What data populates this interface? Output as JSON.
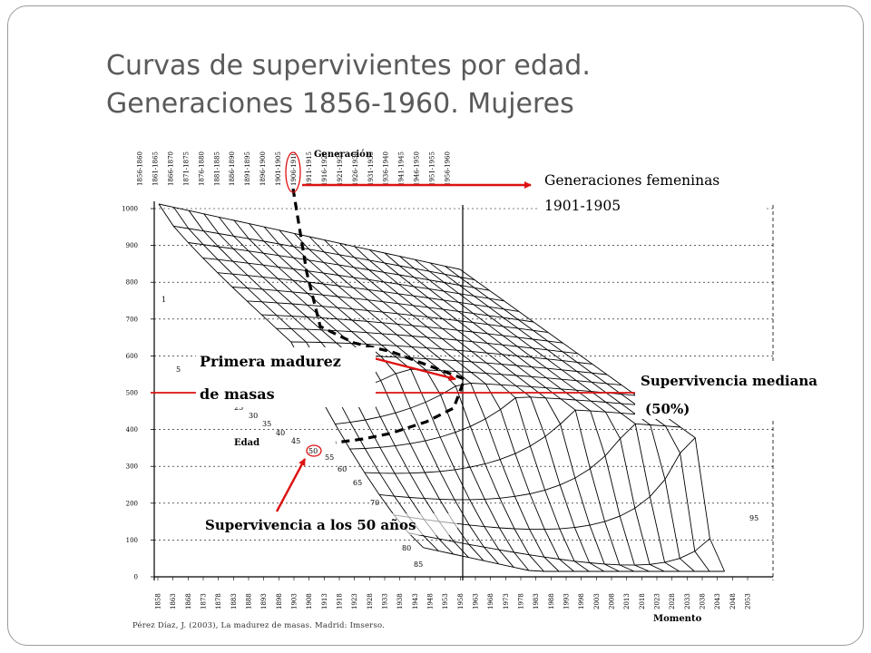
{
  "slide": {
    "title_line1": "Curvas de supervivientes por edad.",
    "title_line2": "Generaciones 1856-1960. Mujeres",
    "source": "Pérez Díaz, J. (2003), La madurez de masas. Madrid: Imserso."
  },
  "colors": {
    "annotation_red": "#dd1111",
    "title_gray": "#5a5a5a",
    "grid": "#000000"
  },
  "chart_data": {
    "type": "surface-3d-wireframe",
    "axis_labels": {
      "generation": "Generación",
      "age": "Edad",
      "time": "Momento"
    },
    "generations": [
      "1856-1860",
      "1861-1865",
      "1866-1870",
      "1871-1875",
      "1876-1880",
      "1881-1885",
      "1886-1890",
      "1891-1895",
      "1896-1900",
      "1901-1905",
      "1906-1910",
      "1911-1915",
      "1916-1920",
      "1921-1925",
      "1926-1930",
      "1931-1935",
      "1936-1940",
      "1941-1945",
      "1946-1950",
      "1951-1955",
      "1956-1960"
    ],
    "y_ticks": [
      "0",
      "100",
      "200",
      "300",
      "400",
      "500",
      "600",
      "700",
      "800",
      "900",
      "1000"
    ],
    "ylim": [
      0,
      1000
    ],
    "time_ticks": [
      "1858",
      "1863",
      "1868",
      "1873",
      "1878",
      "1883",
      "1888",
      "1893",
      "1898",
      "1903",
      "1908",
      "1913",
      "1918",
      "1923",
      "1928",
      "1933",
      "1938",
      "1943",
      "1948",
      "1953",
      "1958",
      "1963",
      "1968",
      "1973",
      "1978",
      "1983",
      "1988",
      "1993",
      "1998",
      "2003",
      "2008",
      "2013",
      "2018",
      "2023",
      "2028",
      "2033",
      "2038",
      "2043",
      "2048",
      "2053"
    ],
    "age_labels": [
      "1",
      "5",
      "25",
      "30",
      "35",
      "40",
      "45",
      "50",
      "55",
      "60",
      "65",
      "70",
      "80",
      "85",
      "95"
    ],
    "annotations": {
      "generation_callout_line1": "Generaciones femeninas",
      "generation_callout_line2": "1901-1905",
      "first_maturity_line1": "Primera madurez",
      "first_maturity_line2": "de masas",
      "median_survival_line1": "Supervivencia mediana",
      "median_survival_line2": "(50%)",
      "survival_at_50": "Supervivencia a los 50 años"
    }
  }
}
